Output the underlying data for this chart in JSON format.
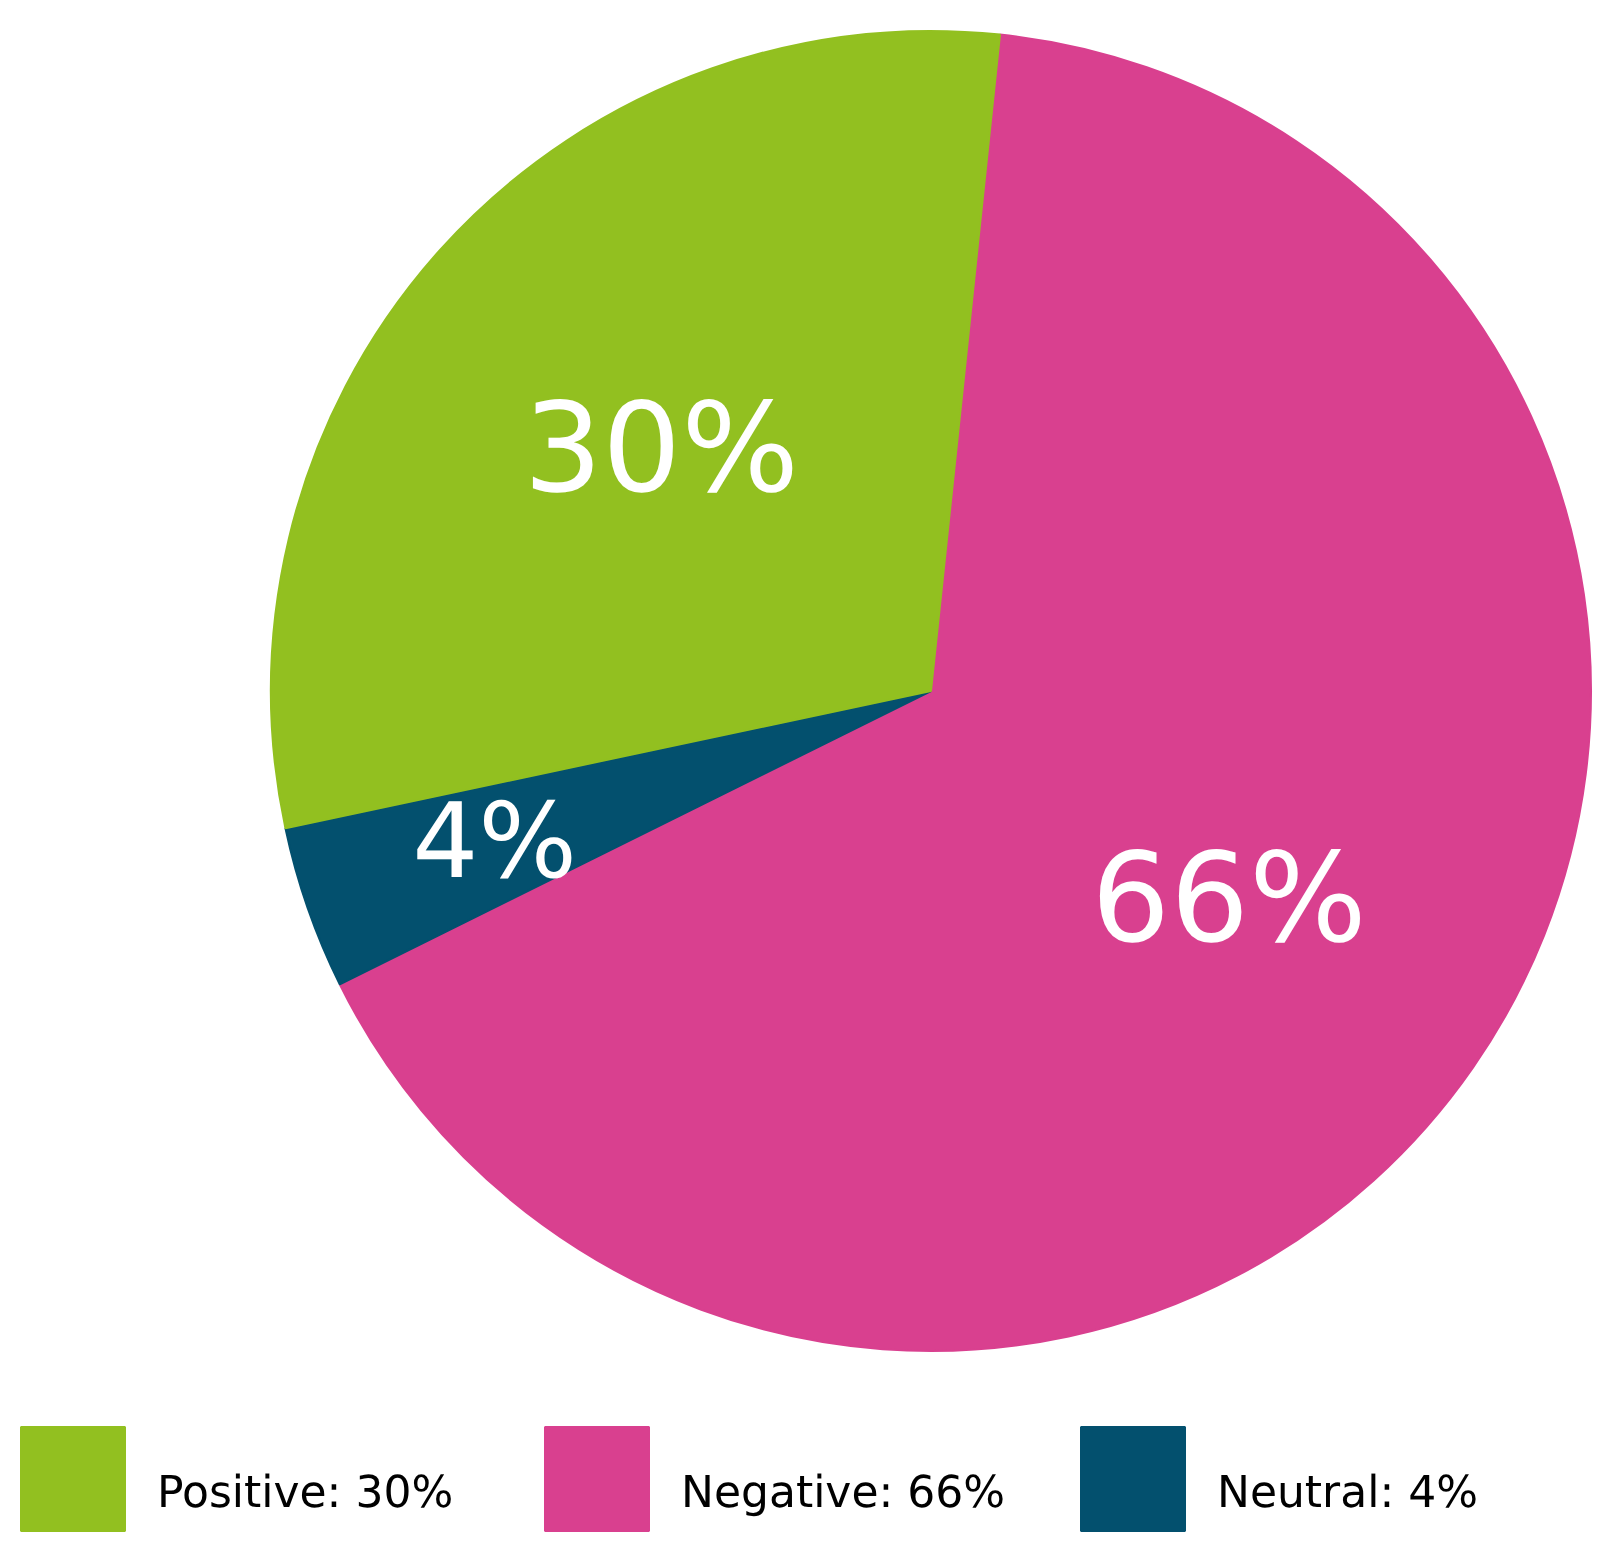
{
  "chart_data": {
    "type": "pie",
    "categories": [
      "Negative",
      "Neutral",
      "Positive"
    ],
    "values": [
      66,
      4,
      30
    ],
    "colors": [
      "#d9408f",
      "#03506e",
      "#92c020"
    ],
    "value_labels": [
      "66%",
      "4%",
      "30%"
    ],
    "data_labels": true,
    "legend": "bottom"
  }
}
